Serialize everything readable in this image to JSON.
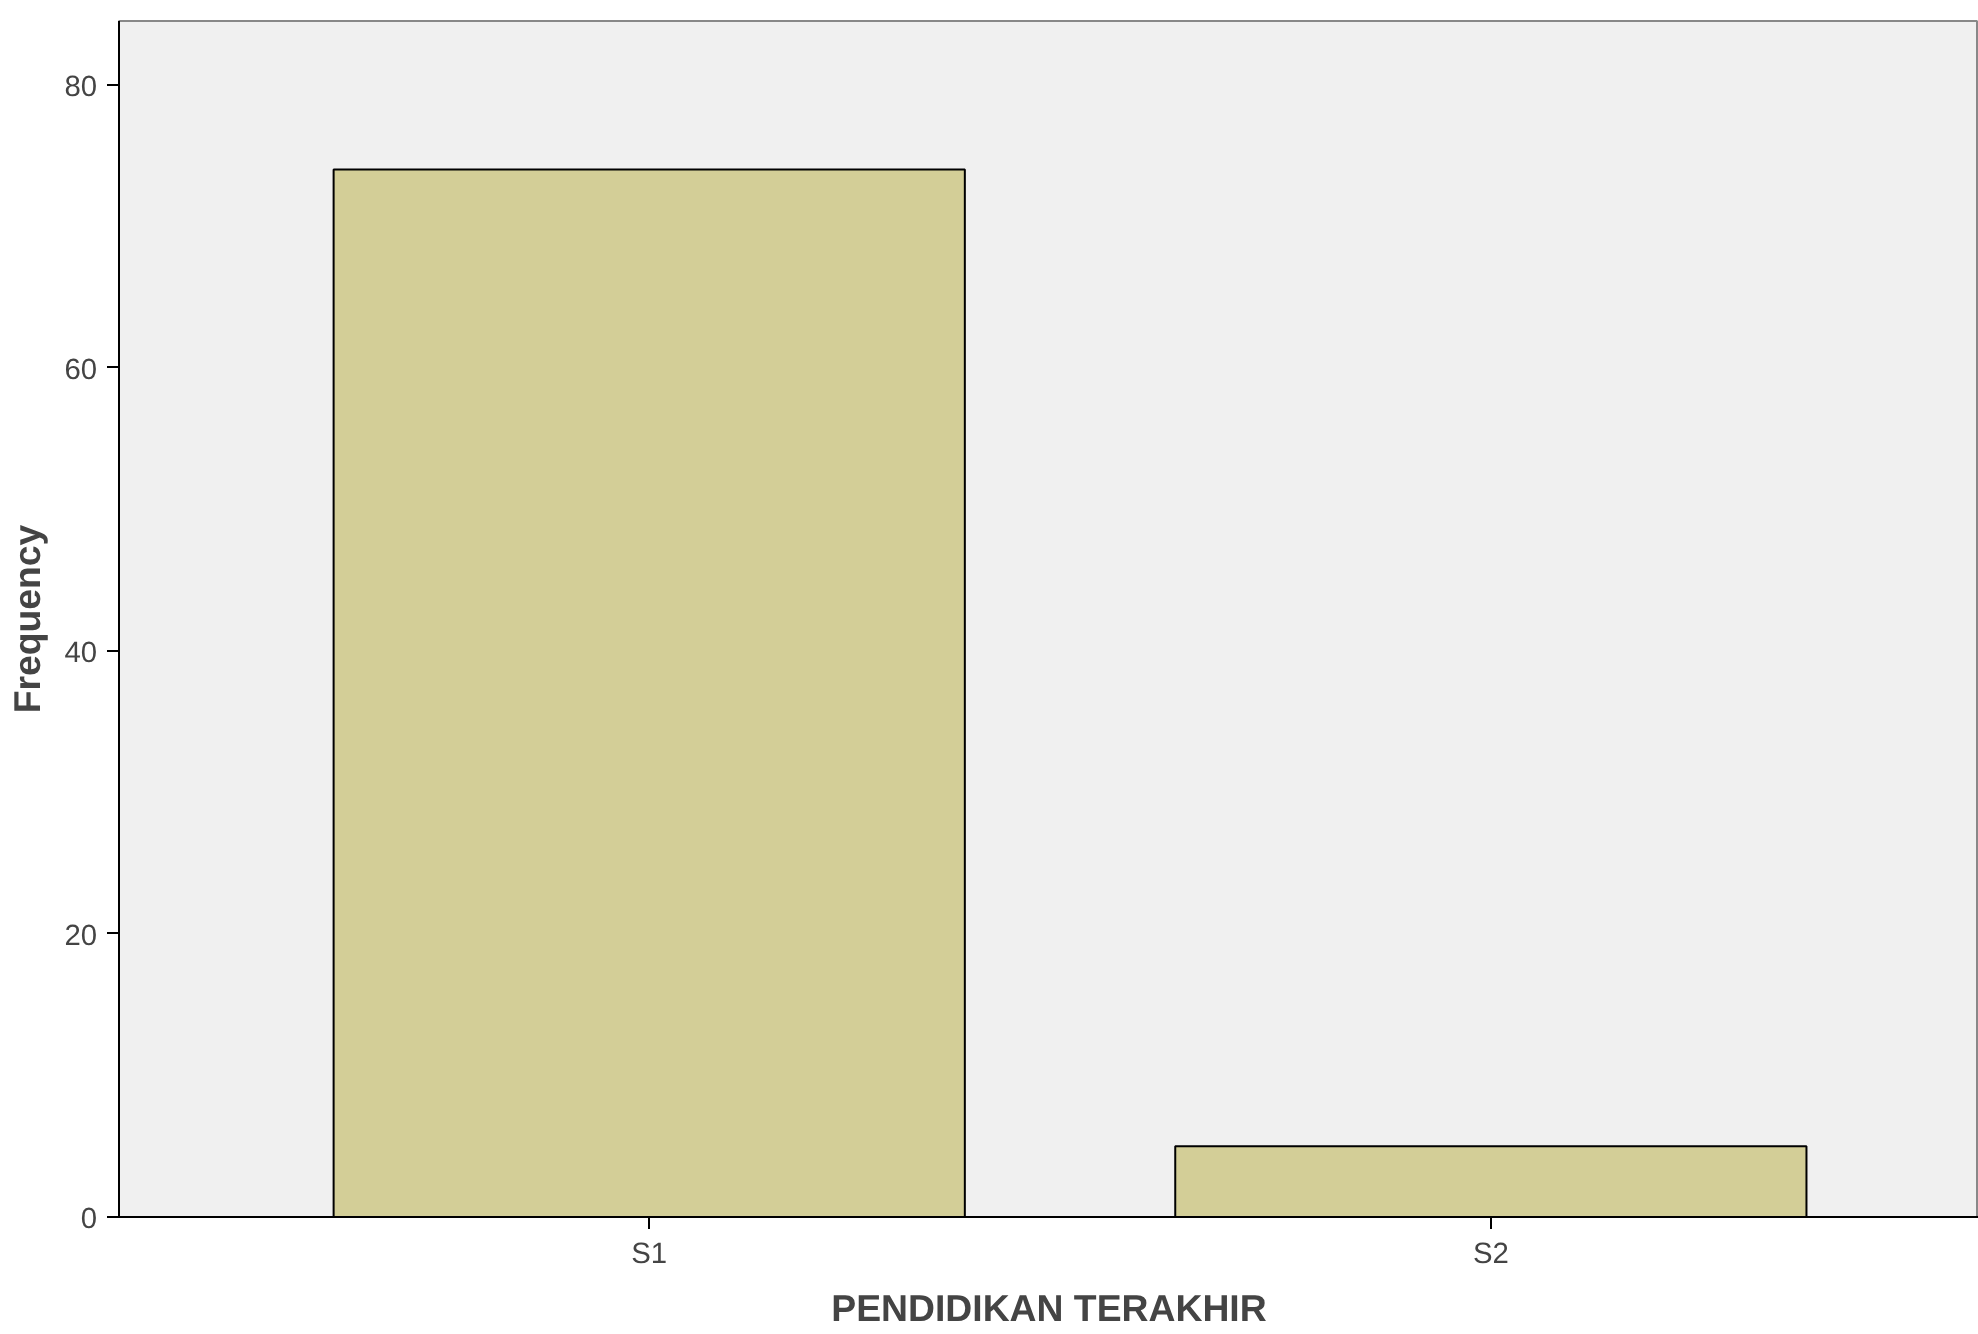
{
  "chart_data": {
    "type": "bar",
    "xlabel": "PENDIDIKAN TERAKHIR",
    "ylabel": "Frequency",
    "categories": [
      "S1",
      "S2"
    ],
    "values": [
      74,
      5
    ],
    "color": "#d3ce97",
    "ylim": [
      0,
      84.5
    ],
    "yticks": [
      0,
      20,
      40,
      60,
      80
    ],
    "grid": false
  }
}
